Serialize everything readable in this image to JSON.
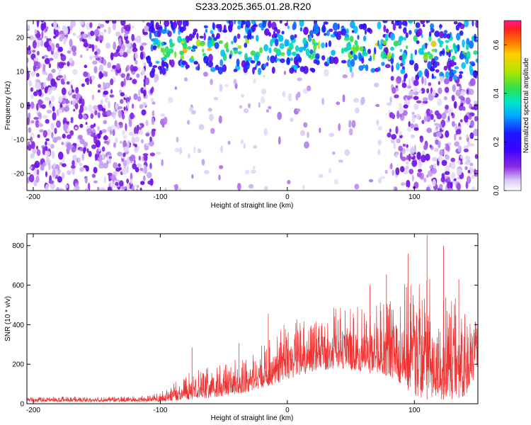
{
  "title": "S233.2025.365.01.28.R20",
  "colors": {
    "snr_line": "#f03232",
    "frame": "#000000",
    "background": "#ffffff",
    "colormap": [
      "#ffffff",
      "#d9c8f7",
      "#8a2be2",
      "#5a00e6",
      "#1a1aff",
      "#00bfff",
      "#00e0a0",
      "#3cdc3c",
      "#c8e600",
      "#ffaa00",
      "#ff3232",
      "#ff1493"
    ]
  },
  "chart_data": [
    {
      "type": "heatmap",
      "name": "spectrogram",
      "xlabel": "Height of straight line (km)",
      "ylabel": "Frequency (Hz)",
      "xlim": [
        -205,
        150
      ],
      "ylim": [
        -25,
        25
      ],
      "xticks": [
        -200,
        -100,
        0,
        100
      ],
      "xtick_labels": [
        "-200",
        "-100",
        "0",
        "100"
      ],
      "yticks": [
        -20,
        -10,
        0,
        10,
        20
      ],
      "ytick_labels": [
        "-20",
        "-10",
        "0",
        "10",
        "20"
      ],
      "colorbar": {
        "label": "Normalized spectral amplitude",
        "range": [
          0,
          0.7
        ],
        "ticks": [
          0,
          0.2,
          0.4,
          0.6
        ],
        "tick_labels": [
          "0.0",
          "0.2",
          "0.4",
          "0.6"
        ]
      },
      "features": {
        "noise_floor_band_hz": [
          10,
          25
        ],
        "strong_band_center_hz": 17,
        "strong_band_x_km": [
          -110,
          150
        ],
        "quiet_window_x_km": [
          -105,
          80
        ],
        "quiet_window_freq_hz": [
          -25,
          10
        ]
      }
    },
    {
      "type": "line",
      "name": "snr",
      "xlabel": "Height of straight line (km)",
      "ylabel": "SNR (10 * v/v)",
      "xlim": [
        -205,
        150
      ],
      "ylim": [
        0,
        860
      ],
      "xticks": [
        -200,
        -100,
        0,
        100
      ],
      "xtick_labels": [
        "-200",
        "-100",
        "0",
        "100"
      ],
      "yticks": [
        0,
        200,
        400,
        600,
        800
      ],
      "ytick_labels": [
        "0",
        "200",
        "400",
        "600",
        "800"
      ],
      "envelope": {
        "x": [
          -205,
          -150,
          -110,
          -100,
          -90,
          -80,
          -70,
          -60,
          -50,
          -40,
          -30,
          -20,
          -10,
          0,
          10,
          20,
          30,
          40,
          50,
          60,
          70,
          80,
          90,
          100,
          110,
          120,
          130,
          140,
          150
        ],
        "low": [
          10,
          10,
          10,
          10,
          15,
          20,
          25,
          30,
          40,
          50,
          60,
          80,
          100,
          120,
          140,
          160,
          170,
          180,
          170,
          160,
          150,
          140,
          100,
          40,
          20,
          20,
          20,
          40,
          140
        ],
        "high": [
          40,
          35,
          40,
          60,
          100,
          150,
          170,
          190,
          200,
          230,
          260,
          300,
          360,
          420,
          450,
          480,
          500,
          520,
          500,
          480,
          500,
          560,
          600,
          700,
          650,
          560,
          560,
          520,
          450
        ]
      },
      "peaks": [
        {
          "x": -75,
          "y": 285
        },
        {
          "x": -38,
          "y": 305
        },
        {
          "x": -15,
          "y": 455
        },
        {
          "x": 65,
          "y": 600
        },
        {
          "x": 78,
          "y": 655
        },
        {
          "x": 95,
          "y": 760
        },
        {
          "x": 110,
          "y": 855
        },
        {
          "x": 123,
          "y": 800
        },
        {
          "x": 135,
          "y": 630
        }
      ]
    }
  ]
}
